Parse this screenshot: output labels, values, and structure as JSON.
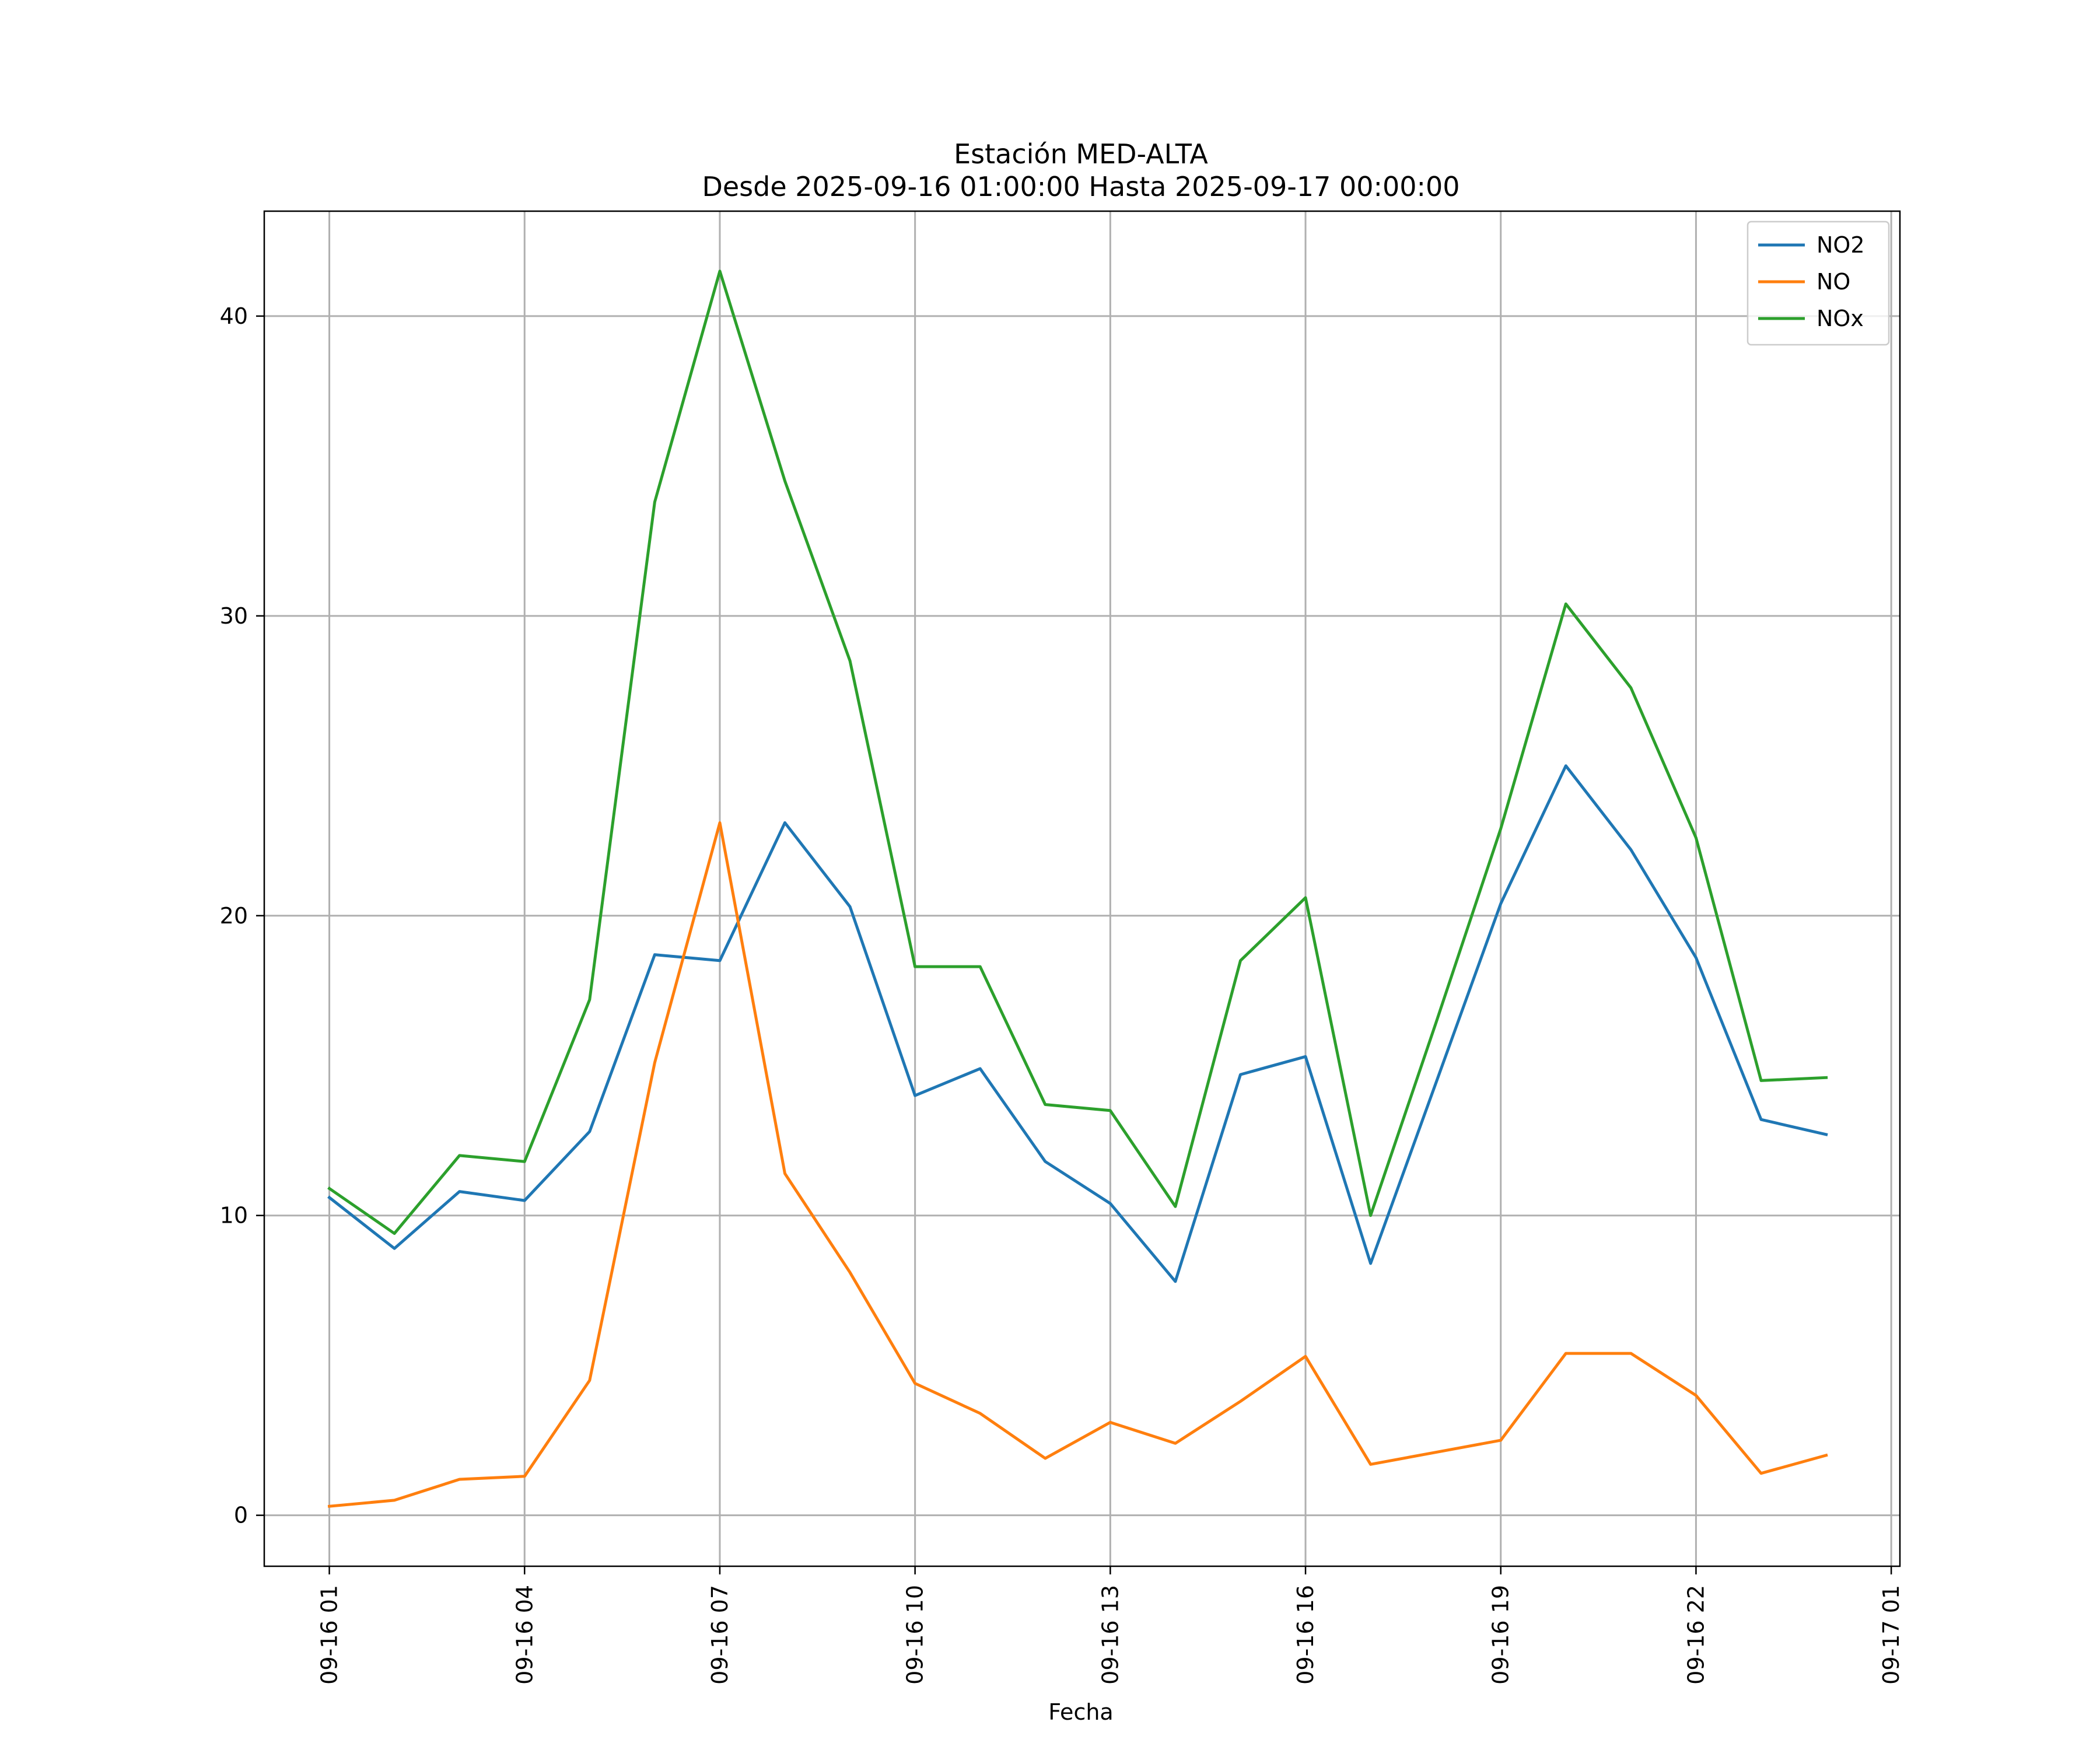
{
  "chart_data": {
    "type": "line",
    "title": "Estación MED-ALTA",
    "subtitle": "Desde 2025-09-16 01:00:00 Hasta 2025-09-17 00:00:00",
    "xlabel": "Fecha",
    "ylabel": "",
    "x": [
      "2025-09-16 01:00",
      "2025-09-16 02:00",
      "2025-09-16 03:00",
      "2025-09-16 04:00",
      "2025-09-16 05:00",
      "2025-09-16 06:00",
      "2025-09-16 07:00",
      "2025-09-16 08:00",
      "2025-09-16 09:00",
      "2025-09-16 10:00",
      "2025-09-16 11:00",
      "2025-09-16 12:00",
      "2025-09-16 13:00",
      "2025-09-16 14:00",
      "2025-09-16 15:00",
      "2025-09-16 16:00",
      "2025-09-16 17:00",
      "2025-09-16 18:00",
      "2025-09-16 19:00",
      "2025-09-16 20:00",
      "2025-09-16 21:00",
      "2025-09-16 22:00",
      "2025-09-16 23:00",
      "2025-09-17 00:00"
    ],
    "x_range": [
      "2025-09-16 00:00",
      "2025-09-17 01:08"
    ],
    "ylim": [
      -1.7,
      43.5
    ],
    "xticks": [
      "09-16 01",
      "09-16 04",
      "09-16 07",
      "09-16 10",
      "09-16 13",
      "09-16 16",
      "09-16 19",
      "09-16 22",
      "09-17 01"
    ],
    "xtick_values": [
      "2025-09-16 01:00",
      "2025-09-16 04:00",
      "2025-09-16 07:00",
      "2025-09-16 10:00",
      "2025-09-16 13:00",
      "2025-09-16 16:00",
      "2025-09-16 19:00",
      "2025-09-16 22:00",
      "2025-09-17 01:00"
    ],
    "yticks": [
      0,
      10,
      20,
      30,
      40
    ],
    "ytick_labels": [
      "0",
      "10",
      "20",
      "30",
      "40"
    ],
    "grid": true,
    "legend_position": "top-right",
    "series": [
      {
        "name": "NO2",
        "color": "#1f77b4",
        "values": [
          10.6,
          8.9,
          10.8,
          10.5,
          12.8,
          18.7,
          18.5,
          23.1,
          20.3,
          14.0,
          14.9,
          11.8,
          10.4,
          7.8,
          14.7,
          15.3,
          8.4,
          14.4,
          20.4,
          25.0,
          22.2,
          18.6,
          13.2,
          12.7
        ]
      },
      {
        "name": "NO",
        "color": "#ff7f0e",
        "values": [
          0.3,
          0.5,
          1.2,
          1.3,
          4.5,
          15.1,
          23.1,
          11.4,
          8.1,
          4.4,
          3.4,
          1.9,
          3.1,
          2.4,
          3.8,
          5.3,
          1.7,
          2.1,
          2.5,
          5.4,
          5.4,
          4.0,
          1.4,
          2.0
        ]
      },
      {
        "name": "NOx",
        "color": "#2ca02c",
        "values": [
          10.9,
          9.4,
          12.0,
          11.8,
          17.2,
          33.8,
          41.5,
          34.5,
          28.5,
          18.3,
          18.3,
          13.7,
          13.5,
          10.3,
          18.5,
          20.6,
          10.0,
          16.4,
          22.9,
          30.4,
          27.6,
          22.6,
          14.5,
          14.6
        ]
      }
    ]
  }
}
